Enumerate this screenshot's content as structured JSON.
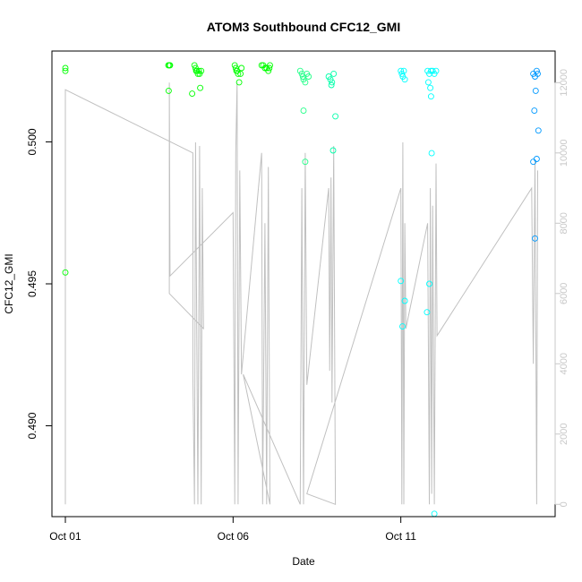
{
  "chart_data": {
    "type": "scatter",
    "title": "ATOM3 Southbound CFC12_GMI",
    "xlabel": "Date",
    "ylabel": "CFC12_GMI",
    "x_ticks": [
      {
        "value": 1,
        "label": "Oct 01"
      },
      {
        "value": 6,
        "label": "Oct 06"
      },
      {
        "value": 11,
        "label": "Oct 11"
      }
    ],
    "y_ticks": [
      0.49,
      0.495,
      0.5
    ],
    "y_tick_labels": [
      "0.490",
      "0.495",
      "0.500"
    ],
    "y2_ticks": [
      0,
      2000,
      4000,
      6000,
      8000,
      10000,
      12000
    ],
    "xlim": [
      0.6,
      15.6
    ],
    "ylim": [
      0.4868,
      0.5032
    ],
    "y2lim": [
      -350,
      12900
    ],
    "colors": {
      "point_early": "#00ff00",
      "point_mid": "#00ffff",
      "point_late": "#0099ff",
      "altitude_line": "#c0c0c0",
      "right_axis": "#c8c8c8"
    },
    "points": [
      {
        "x": 1.0,
        "y": 0.5026
      },
      {
        "x": 1.0,
        "y": 0.5025
      },
      {
        "x": 1.0,
        "y": 0.4954
      },
      {
        "x": 4.07,
        "y": 0.5027
      },
      {
        "x": 4.1,
        "y": 0.5027
      },
      {
        "x": 4.12,
        "y": 0.5027
      },
      {
        "x": 4.08,
        "y": 0.5018
      },
      {
        "x": 4.78,
        "y": 0.5017
      },
      {
        "x": 4.85,
        "y": 0.5027
      },
      {
        "x": 4.88,
        "y": 0.5026
      },
      {
        "x": 4.9,
        "y": 0.5025
      },
      {
        "x": 4.92,
        "y": 0.5025
      },
      {
        "x": 4.95,
        "y": 0.5024
      },
      {
        "x": 4.98,
        "y": 0.5025
      },
      {
        "x": 5.0,
        "y": 0.5024
      },
      {
        "x": 5.02,
        "y": 0.5019
      },
      {
        "x": 5.05,
        "y": 0.5025
      },
      {
        "x": 6.05,
        "y": 0.5027
      },
      {
        "x": 6.08,
        "y": 0.5026
      },
      {
        "x": 6.1,
        "y": 0.5025
      },
      {
        "x": 6.12,
        "y": 0.5025
      },
      {
        "x": 6.15,
        "y": 0.5024
      },
      {
        "x": 6.18,
        "y": 0.5021
      },
      {
        "x": 6.22,
        "y": 0.5024
      },
      {
        "x": 6.25,
        "y": 0.5026
      },
      {
        "x": 6.85,
        "y": 0.5027
      },
      {
        "x": 6.9,
        "y": 0.5027
      },
      {
        "x": 6.95,
        "y": 0.5026
      },
      {
        "x": 7.0,
        "y": 0.5026
      },
      {
        "x": 7.05,
        "y": 0.5025
      },
      {
        "x": 7.08,
        "y": 0.5026
      },
      {
        "x": 7.1,
        "y": 0.5027
      },
      {
        "x": 8.0,
        "y": 0.5025
      },
      {
        "x": 8.05,
        "y": 0.5024
      },
      {
        "x": 8.08,
        "y": 0.5023
      },
      {
        "x": 8.1,
        "y": 0.5022
      },
      {
        "x": 8.15,
        "y": 0.5021
      },
      {
        "x": 8.2,
        "y": 0.5024
      },
      {
        "x": 8.25,
        "y": 0.5023
      },
      {
        "x": 8.1,
        "y": 0.5011
      },
      {
        "x": 8.15,
        "y": 0.4993
      },
      {
        "x": 8.85,
        "y": 0.5023
      },
      {
        "x": 8.9,
        "y": 0.5022
      },
      {
        "x": 8.93,
        "y": 0.502
      },
      {
        "x": 8.95,
        "y": 0.5021
      },
      {
        "x": 9.0,
        "y": 0.5024
      },
      {
        "x": 9.05,
        "y": 0.5009
      },
      {
        "x": 8.98,
        "y": 0.4997
      },
      {
        "x": 11.0,
        "y": 0.5025
      },
      {
        "x": 11.03,
        "y": 0.5024
      },
      {
        "x": 11.06,
        "y": 0.5023
      },
      {
        "x": 11.09,
        "y": 0.5025
      },
      {
        "x": 11.12,
        "y": 0.5022
      },
      {
        "x": 11.0,
        "y": 0.4951
      },
      {
        "x": 11.05,
        "y": 0.4935
      },
      {
        "x": 11.12,
        "y": 0.4944
      },
      {
        "x": 11.8,
        "y": 0.5025
      },
      {
        "x": 11.85,
        "y": 0.5024
      },
      {
        "x": 11.9,
        "y": 0.5025
      },
      {
        "x": 11.95,
        "y": 0.5025
      },
      {
        "x": 12.0,
        "y": 0.5024
      },
      {
        "x": 12.05,
        "y": 0.5025
      },
      {
        "x": 11.82,
        "y": 0.5021
      },
      {
        "x": 11.88,
        "y": 0.5019
      },
      {
        "x": 11.9,
        "y": 0.5016
      },
      {
        "x": 11.92,
        "y": 0.4996
      },
      {
        "x": 11.85,
        "y": 0.495
      },
      {
        "x": 11.78,
        "y": 0.494
      },
      {
        "x": 12.0,
        "y": 0.4869
      },
      {
        "x": 14.95,
        "y": 0.5024
      },
      {
        "x": 15.0,
        "y": 0.5023
      },
      {
        "x": 15.05,
        "y": 0.5025
      },
      {
        "x": 15.08,
        "y": 0.5024
      },
      {
        "x": 15.02,
        "y": 0.5018
      },
      {
        "x": 14.98,
        "y": 0.5011
      },
      {
        "x": 15.1,
        "y": 0.5004
      },
      {
        "x": 15.05,
        "y": 0.4994
      },
      {
        "x": 14.95,
        "y": 0.4993
      },
      {
        "x": 15.0,
        "y": 0.4966
      }
    ],
    "altitude_line": [
      {
        "x": 1.0,
        "alt": 0
      },
      {
        "x": 1.0,
        "alt": 11800
      },
      {
        "x": 4.8,
        "alt": 10000
      },
      {
        "x": 4.8,
        "alt": 3700
      },
      {
        "x": 4.85,
        "alt": 0
      },
      {
        "x": 4.88,
        "alt": 10300
      },
      {
        "x": 4.95,
        "alt": 0
      },
      {
        "x": 5.0,
        "alt": 10200
      },
      {
        "x": 5.05,
        "alt": 0
      },
      {
        "x": 5.08,
        "alt": 9000
      },
      {
        "x": 5.12,
        "alt": 5000
      },
      {
        "x": 4.1,
        "alt": 6000
      },
      {
        "x": 4.1,
        "alt": 12000
      },
      {
        "x": 4.12,
        "alt": 6500
      },
      {
        "x": 6.0,
        "alt": 8300
      },
      {
        "x": 6.05,
        "alt": 0
      },
      {
        "x": 6.08,
        "alt": 10000
      },
      {
        "x": 6.12,
        "alt": 12000
      },
      {
        "x": 6.15,
        "alt": 0
      },
      {
        "x": 6.2,
        "alt": 9500
      },
      {
        "x": 6.25,
        "alt": 3700
      },
      {
        "x": 6.85,
        "alt": 10000
      },
      {
        "x": 6.88,
        "alt": 0
      },
      {
        "x": 6.95,
        "alt": 8000
      },
      {
        "x": 7.0,
        "alt": 0
      },
      {
        "x": 7.05,
        "alt": 9600
      },
      {
        "x": 7.1,
        "alt": 0
      },
      {
        "x": 6.3,
        "alt": 3700
      },
      {
        "x": 8.0,
        "alt": 0
      },
      {
        "x": 8.05,
        "alt": 9000
      },
      {
        "x": 8.1,
        "alt": 0
      },
      {
        "x": 8.15,
        "alt": 10000
      },
      {
        "x": 8.2,
        "alt": 3400
      },
      {
        "x": 8.85,
        "alt": 9000
      },
      {
        "x": 8.88,
        "alt": 3800
      },
      {
        "x": 8.92,
        "alt": 9300
      },
      {
        "x": 8.95,
        "alt": 2900
      },
      {
        "x": 9.0,
        "alt": 10200
      },
      {
        "x": 9.05,
        "alt": 0
      },
      {
        "x": 8.2,
        "alt": 300
      },
      {
        "x": 11.0,
        "alt": 9000
      },
      {
        "x": 11.03,
        "alt": 0
      },
      {
        "x": 11.06,
        "alt": 10300
      },
      {
        "x": 11.09,
        "alt": 0
      },
      {
        "x": 11.12,
        "alt": 8000
      },
      {
        "x": 11.15,
        "alt": 5000
      },
      {
        "x": 11.8,
        "alt": 8000
      },
      {
        "x": 11.85,
        "alt": 0
      },
      {
        "x": 11.88,
        "alt": 9000
      },
      {
        "x": 11.92,
        "alt": 300
      },
      {
        "x": 11.95,
        "alt": 8500
      },
      {
        "x": 12.0,
        "alt": 0
      },
      {
        "x": 12.05,
        "alt": 9700
      },
      {
        "x": 12.08,
        "alt": 4800
      },
      {
        "x": 14.9,
        "alt": 9000
      },
      {
        "x": 14.95,
        "alt": 4000
      },
      {
        "x": 15.0,
        "alt": 9800
      },
      {
        "x": 15.05,
        "alt": 0
      },
      {
        "x": 15.08,
        "alt": 9500
      }
    ]
  }
}
